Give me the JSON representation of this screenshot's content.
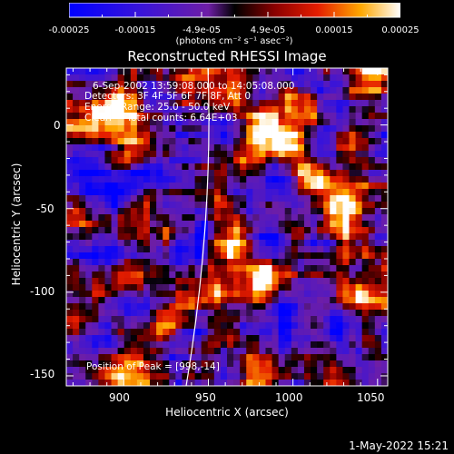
{
  "colorbar": {
    "ticks": [
      "-0.00025",
      "-0.00015",
      "-4.9e-05",
      "4.9e-05",
      "0.00015",
      "0.00025"
    ],
    "unit_label": "(photons cm⁻² s⁻¹ asec⁻²)"
  },
  "chart_data": {
    "type": "heatmap",
    "title": "Reconstructed RHESSI Image",
    "xlabel": "Heliocentric X (arcsec)",
    "ylabel": "Heliocentric Y (arcsec)",
    "xlim": [
      866,
      1056
    ],
    "ylim": [
      -156,
      34
    ],
    "xticks": [
      900,
      950,
      1000,
      1050
    ],
    "yticks": [
      0,
      -50,
      -100,
      -150
    ],
    "value_range": [
      -0.00025,
      0.00025
    ],
    "peak": [
      998,
      -14
    ],
    "annotations": {
      "time": "6-Sep-2002 13:59:08.000 to 14:05:08.000",
      "detectors": "Detectors: 3F 4F 5F 6F 7F 8F, Att 0",
      "energy": "Energy Range: 25.0 - 50.0 keV",
      "method": "Clean     Total counts: 6.64E+03",
      "peak_text": "Position of Peak = [998,-14]"
    }
  },
  "footer": {
    "timestamp": "1-May-2022 15:21"
  }
}
